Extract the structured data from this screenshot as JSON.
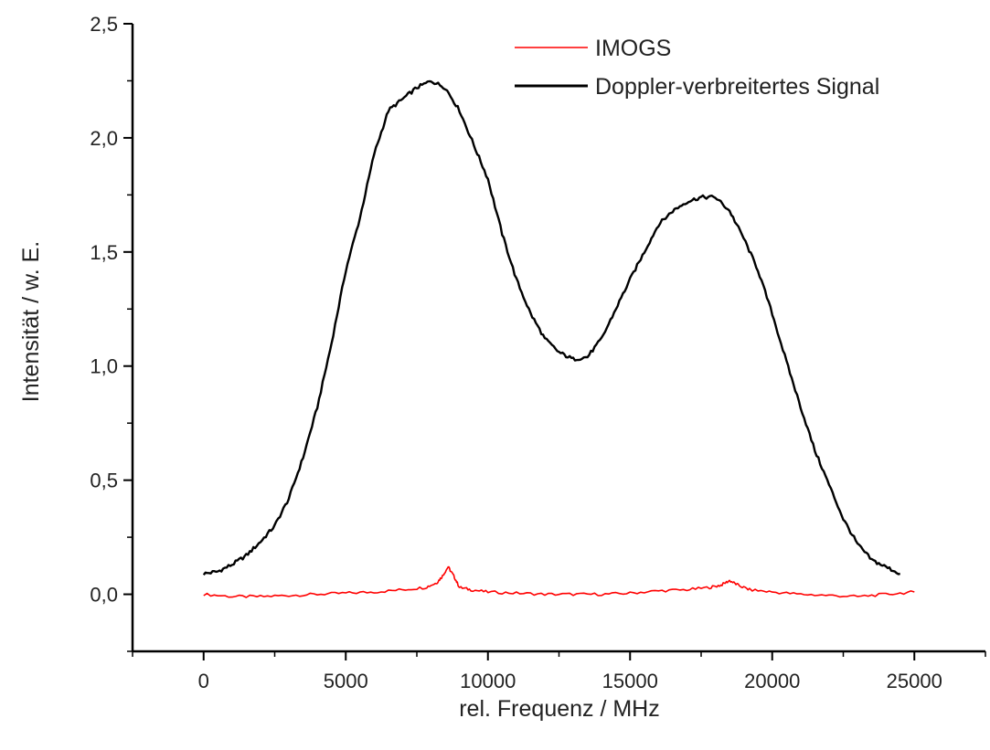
{
  "chart_data": {
    "type": "line",
    "title": "",
    "xlabel": "rel. Frequenz / MHz",
    "ylabel": "Intensität / w. E.",
    "xlim": [
      -2500,
      27500
    ],
    "ylim": [
      -0.25,
      2.5
    ],
    "x_ticks": [
      0,
      5000,
      10000,
      15000,
      20000,
      25000
    ],
    "x_tick_labels": [
      "0",
      "5000",
      "10000",
      "15000",
      "20000",
      "25000"
    ],
    "y_ticks": [
      0.0,
      0.5,
      1.0,
      1.5,
      2.0,
      2.5
    ],
    "y_tick_labels": [
      "0,0",
      "0,5",
      "1,0",
      "1,5",
      "2,0",
      "2,5"
    ],
    "grid": false,
    "legend_position": "top-right",
    "series": [
      {
        "name": "IMOGS",
        "color": "#ff0000",
        "x": [
          0,
          1000,
          2000,
          3000,
          4000,
          5000,
          6000,
          7000,
          7800,
          8200,
          8400,
          8600,
          8800,
          9000,
          9400,
          10000,
          11000,
          12000,
          13000,
          14000,
          15000,
          16000,
          17000,
          17800,
          18200,
          18500,
          18800,
          19200,
          20000,
          21000,
          22000,
          23000,
          24000,
          25000
        ],
        "y": [
          0.0,
          -0.01,
          -0.01,
          -0.005,
          0.0,
          0.005,
          0.01,
          0.02,
          0.03,
          0.05,
          0.08,
          0.12,
          0.08,
          0.03,
          0.02,
          0.01,
          0.005,
          0.0,
          0.0,
          0.0,
          0.005,
          0.015,
          0.02,
          0.03,
          0.04,
          0.06,
          0.04,
          0.02,
          0.01,
          0.0,
          -0.005,
          -0.01,
          0.0,
          0.01
        ]
      },
      {
        "name": "Doppler-verbreitertes Signal",
        "color": "#000000",
        "x": [
          0,
          500,
          1000,
          1500,
          2000,
          2500,
          3000,
          3500,
          4000,
          4500,
          5000,
          5500,
          6000,
          6500,
          7000,
          7500,
          8000,
          8500,
          9000,
          9500,
          10000,
          10500,
          11000,
          11500,
          12000,
          12500,
          13000,
          13500,
          14000,
          14500,
          15000,
          15500,
          16000,
          16500,
          17000,
          17500,
          18000,
          18500,
          19000,
          19500,
          20000,
          20500,
          21000,
          21500,
          22000,
          22500,
          23000,
          23500,
          24000,
          24500
        ],
        "y": [
          0.09,
          0.1,
          0.13,
          0.17,
          0.23,
          0.3,
          0.42,
          0.6,
          0.82,
          1.1,
          1.42,
          1.65,
          1.93,
          2.12,
          2.17,
          2.22,
          2.25,
          2.22,
          2.12,
          1.97,
          1.82,
          1.58,
          1.38,
          1.23,
          1.12,
          1.06,
          1.03,
          1.04,
          1.12,
          1.25,
          1.38,
          1.5,
          1.62,
          1.68,
          1.72,
          1.74,
          1.74,
          1.68,
          1.56,
          1.42,
          1.23,
          1.02,
          0.82,
          0.63,
          0.48,
          0.33,
          0.22,
          0.15,
          0.12,
          0.09
        ]
      }
    ]
  }
}
